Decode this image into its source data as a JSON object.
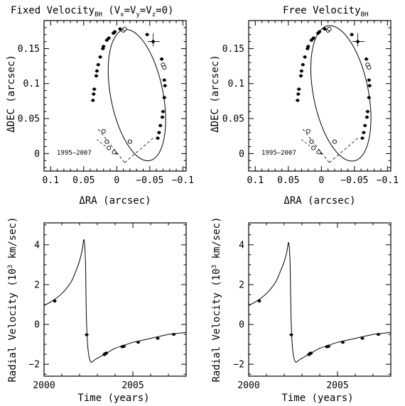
{
  "figure": {
    "panels": [
      {
        "id": "orbit-fixed",
        "title": "Fixed Velocity",
        "title_sub": "BH",
        "title_extra": " (V",
        "title_vx_sub": "x",
        "title_eq1": "=V",
        "title_vy_sub": "y",
        "title_eq2": "=V",
        "title_vz_sub": "z",
        "title_end": "=0)",
        "xlabel": "ΔRA (arcsec)",
        "ylabel": "ΔDEC (arcsec)",
        "annotation": "1995–2007",
        "xticks": [
          "0.1",
          "0.05",
          "0",
          "−0.05",
          "−0.1"
        ],
        "yticks": [
          "0",
          "0.05",
          "0.1",
          "0.15"
        ]
      },
      {
        "id": "orbit-free",
        "title": "Free Velocity",
        "title_sub": "BH",
        "xlabel": "ΔRA (arcsec)",
        "ylabel": "ΔDEC (arcsec)",
        "annotation": "1995–2007",
        "xticks": [
          "0.1",
          "0.05",
          "0",
          "−0.05",
          "−0.1"
        ],
        "yticks": [
          "0",
          "0.05",
          "0.1",
          "0.15"
        ]
      },
      {
        "id": "rv-fixed",
        "xlabel": "Time (years)",
        "ylabel_pre": "Radial Velocity (10",
        "ylabel_sup": "3",
        "ylabel_post": " km/sec)",
        "xticks": [
          "2000",
          "2005"
        ],
        "yticks": [
          "−2",
          "0",
          "2",
          "4"
        ]
      },
      {
        "id": "rv-free",
        "xlabel": "Time (years)",
        "ylabel_pre": "Radial Velocity (10",
        "ylabel_sup": "3",
        "ylabel_post": " km/sec)",
        "xticks": [
          "2000",
          "2005"
        ],
        "yticks": [
          "−2",
          "0",
          "2",
          "4"
        ]
      }
    ]
  },
  "chart_data": [
    {
      "type": "scatter",
      "title": "Fixed Velocity_BH (V_x=V_y=V_z=0)",
      "xlabel": "ΔRA (arcsec)",
      "ylabel": "ΔDEC (arcsec)",
      "xlim": [
        0.11,
        -0.105
      ],
      "ylim": [
        -0.025,
        0.19
      ],
      "xticks": [
        0.1,
        0.05,
        0,
        -0.05,
        -0.1
      ],
      "yticks": [
        0,
        0.05,
        0.1,
        0.15
      ],
      "annotation": "1995–2007",
      "orbit_fit": {
        "center": [
          -0.0305,
          0.0835
        ],
        "semi_x": 0.0395,
        "semi_y": 0.0955,
        "tilt_deg": -12
      },
      "series": [
        {
          "marker": "filled",
          "points": [
            [
              0.035,
              0.085
            ],
            [
              0.036,
              0.076
            ],
            [
              0.034,
              0.092
            ],
            [
              0.031,
              0.111
            ],
            [
              0.03,
              0.118
            ],
            [
              0.028,
              0.127
            ],
            [
              0.025,
              0.138
            ],
            [
              0.021,
              0.15
            ],
            [
              0.02,
              0.153
            ],
            [
              0.015,
              0.162
            ],
            [
              0.012,
              0.165
            ],
            [
              0.005,
              0.172
            ],
            [
              0.003,
              0.174
            ],
            [
              -0.005,
              0.178
            ],
            [
              -0.046,
              0.17
            ],
            [
              -0.055,
              0.16
            ],
            [
              -0.068,
              0.135
            ],
            [
              -0.072,
              0.105
            ],
            [
              -0.073,
              0.097
            ],
            [
              -0.072,
              0.08
            ],
            [
              -0.07,
              0.06
            ],
            [
              -0.069,
              0.052
            ],
            [
              -0.066,
              0.04
            ],
            [
              -0.064,
              0.03
            ],
            [
              -0.062,
              0.022
            ]
          ]
        },
        {
          "marker": "open",
          "points": [
            [
              0.02,
              0.032
            ],
            [
              0.015,
              0.017
            ],
            [
              0.012,
              0.008
            ],
            [
              0.004,
              0.002
            ],
            [
              -0.02,
              0.017
            ],
            [
              -0.07,
              0.127
            ],
            [
              -0.072,
              0.123
            ],
            [
              -0.01,
              0.176
            ],
            [
              -0.012,
              0.178
            ]
          ]
        }
      ]
    },
    {
      "type": "scatter",
      "title": "Free Velocity_BH",
      "xlabel": "ΔRA (arcsec)",
      "ylabel": "ΔDEC (arcsec)",
      "xlim": [
        0.11,
        -0.105
      ],
      "ylim": [
        -0.025,
        0.19
      ],
      "xticks": [
        0.1,
        0.05,
        0,
        -0.05,
        -0.1
      ],
      "yticks": [
        0,
        0.05,
        0.1,
        0.15
      ],
      "annotation": "1995–2007",
      "orbit_fit": {
        "center": [
          -0.0295,
          0.086
        ],
        "semi_x": 0.0415,
        "semi_y": 0.0985,
        "tilt_deg": -12
      },
      "series": [
        {
          "marker": "filled",
          "points": [
            [
              0.035,
              0.085
            ],
            [
              0.036,
              0.076
            ],
            [
              0.034,
              0.092
            ],
            [
              0.031,
              0.111
            ],
            [
              0.03,
              0.118
            ],
            [
              0.028,
              0.127
            ],
            [
              0.025,
              0.138
            ],
            [
              0.021,
              0.15
            ],
            [
              0.02,
              0.153
            ],
            [
              0.015,
              0.162
            ],
            [
              0.012,
              0.165
            ],
            [
              0.005,
              0.172
            ],
            [
              0.003,
              0.174
            ],
            [
              -0.005,
              0.178
            ],
            [
              -0.046,
              0.17
            ],
            [
              -0.055,
              0.16
            ],
            [
              -0.068,
              0.135
            ],
            [
              -0.072,
              0.105
            ],
            [
              -0.073,
              0.097
            ],
            [
              -0.072,
              0.08
            ],
            [
              -0.07,
              0.06
            ],
            [
              -0.069,
              0.052
            ],
            [
              -0.066,
              0.04
            ],
            [
              -0.064,
              0.03
            ],
            [
              -0.062,
              0.022
            ]
          ]
        },
        {
          "marker": "open",
          "points": [
            [
              0.02,
              0.032
            ],
            [
              0.015,
              0.017
            ],
            [
              0.012,
              0.008
            ],
            [
              0.004,
              0.002
            ],
            [
              -0.02,
              0.017
            ],
            [
              -0.07,
              0.127
            ],
            [
              -0.072,
              0.123
            ],
            [
              -0.01,
              0.176
            ],
            [
              -0.012,
              0.178
            ]
          ]
        }
      ]
    },
    {
      "type": "line",
      "xlabel": "Time (years)",
      "ylabel": "Radial Velocity (10^3 km/sec)",
      "xlim": [
        2000,
        2008
      ],
      "ylim": [
        -2.6,
        5.1
      ],
      "xticks": [
        2000,
        2005
      ],
      "yticks": [
        -2,
        0,
        2,
        4
      ],
      "model": {
        "x": [
          2000.0,
          2000.5,
          2001.0,
          2001.5,
          2001.8,
          2002.0,
          2002.15,
          2002.25,
          2002.33,
          2002.38,
          2002.45,
          2002.55,
          2002.65,
          2002.75,
          2002.9,
          2003.1,
          2003.5,
          2004.0,
          2004.5,
          2005.0,
          2005.5,
          2006.0,
          2006.5,
          2007.0,
          2007.5,
          2008.0
        ],
        "y": [
          0.95,
          1.2,
          1.55,
          2.1,
          2.7,
          3.2,
          3.75,
          4.25,
          3.2,
          0.5,
          -1.0,
          -1.7,
          -1.9,
          -1.85,
          -1.75,
          -1.65,
          -1.45,
          -1.2,
          -1.05,
          -0.9,
          -0.8,
          -0.7,
          -0.6,
          -0.5,
          -0.45,
          -0.4
        ]
      },
      "points": {
        "x": [
          2000.6,
          2002.4,
          2003.4,
          2003.5,
          2004.4,
          2004.5,
          2005.3,
          2006.4,
          2007.3
        ],
        "y": [
          1.18,
          -0.52,
          -1.5,
          -1.45,
          -1.12,
          -1.1,
          -0.9,
          -0.7,
          -0.5
        ],
        "err": [
          0.1,
          0.06,
          0.12,
          0.1,
          0.08,
          0.08,
          0.07,
          0.07,
          0.06
        ]
      }
    },
    {
      "type": "line",
      "xlabel": "Time (years)",
      "ylabel": "Radial Velocity (10^3 km/sec)",
      "xlim": [
        2000,
        2008
      ],
      "ylim": [
        -2.6,
        5.1
      ],
      "xticks": [
        2000,
        2005
      ],
      "yticks": [
        -2,
        0,
        2,
        4
      ],
      "model": {
        "x": [
          2000.0,
          2000.5,
          2001.0,
          2001.5,
          2001.8,
          2002.0,
          2002.15,
          2002.25,
          2002.33,
          2002.38,
          2002.45,
          2002.55,
          2002.65,
          2002.75,
          2002.9,
          2003.1,
          2003.5,
          2004.0,
          2004.5,
          2005.0,
          2005.5,
          2006.0,
          2006.5,
          2007.0,
          2007.5,
          2008.0
        ],
        "y": [
          0.95,
          1.2,
          1.55,
          2.1,
          2.7,
          3.15,
          3.65,
          4.1,
          3.1,
          0.5,
          -1.0,
          -1.7,
          -1.9,
          -1.85,
          -1.75,
          -1.65,
          -1.45,
          -1.2,
          -1.05,
          -0.9,
          -0.8,
          -0.7,
          -0.6,
          -0.5,
          -0.45,
          -0.4
        ]
      },
      "points": {
        "x": [
          2000.6,
          2002.4,
          2003.4,
          2003.5,
          2004.4,
          2004.5,
          2005.3,
          2006.4,
          2007.3
        ],
        "y": [
          1.18,
          -0.52,
          -1.5,
          -1.45,
          -1.12,
          -1.1,
          -0.9,
          -0.7,
          -0.5
        ],
        "err": [
          0.1,
          0.06,
          0.12,
          0.1,
          0.08,
          0.08,
          0.07,
          0.07,
          0.06
        ]
      }
    }
  ]
}
